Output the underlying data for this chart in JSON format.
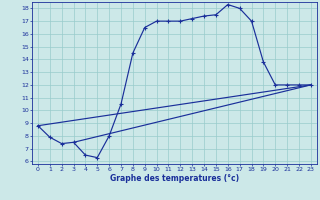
{
  "xlabel": "Graphe des temperatures (°c)",
  "bg_color": "#cce8e8",
  "grid_color": "#99cccc",
  "line_color": "#1a2f9a",
  "xlim": [
    -0.5,
    23.5
  ],
  "ylim": [
    5.8,
    18.5
  ],
  "xticks": [
    0,
    1,
    2,
    3,
    4,
    5,
    6,
    7,
    8,
    9,
    10,
    11,
    12,
    13,
    14,
    15,
    16,
    17,
    18,
    19,
    20,
    21,
    22,
    23
  ],
  "yticks": [
    6,
    7,
    8,
    9,
    10,
    11,
    12,
    13,
    14,
    15,
    16,
    17,
    18
  ],
  "line1_x": [
    0,
    1,
    2,
    3,
    4,
    5,
    6,
    7,
    8,
    9,
    10,
    11,
    12,
    13,
    14,
    15,
    16,
    17,
    18,
    19,
    20,
    21,
    22,
    23
  ],
  "line1_y": [
    8.8,
    7.9,
    7.4,
    7.5,
    6.5,
    6.3,
    8.0,
    10.5,
    14.5,
    16.5,
    17.0,
    17.0,
    17.0,
    17.2,
    17.4,
    17.5,
    18.3,
    18.0,
    17.0,
    13.8,
    12.0,
    12.0,
    12.0,
    12.0
  ],
  "line2_x": [
    0,
    23
  ],
  "line2_y": [
    8.8,
    12.0
  ],
  "line3_x": [
    3,
    23
  ],
  "line3_y": [
    7.5,
    12.0
  ]
}
